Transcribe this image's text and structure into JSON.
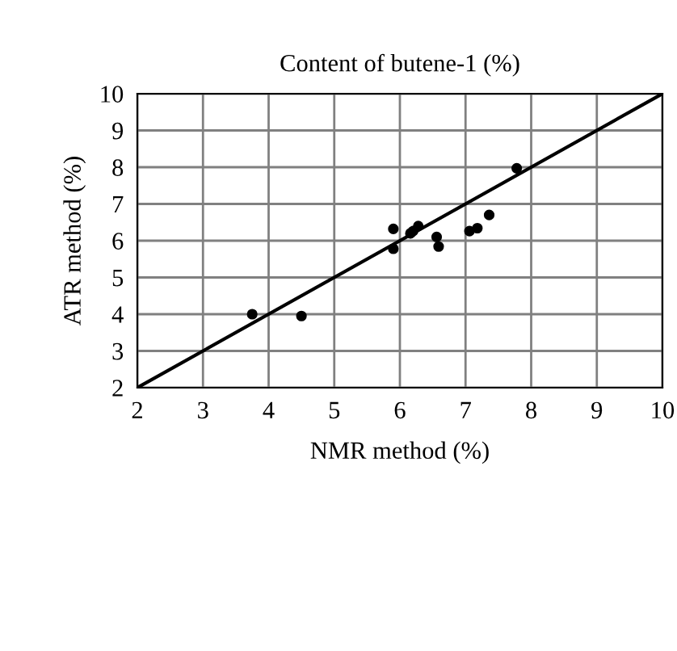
{
  "chart_data": {
    "type": "scatter",
    "title": "Content of butene-1 (%)",
    "xlabel": "NMR method (%)",
    "ylabel": "ATR method (%)",
    "xlim": [
      2,
      10
    ],
    "ylim": [
      2,
      10
    ],
    "xticks": [
      2,
      3,
      4,
      5,
      6,
      7,
      8,
      9,
      10
    ],
    "yticks": [
      2,
      3,
      4,
      5,
      6,
      7,
      8,
      9,
      10
    ],
    "grid": true,
    "marker": "circle",
    "series": [
      {
        "color": "#000000",
        "x": [
          3.75,
          4.5,
          5.9,
          5.9,
          6.16,
          6.2,
          6.28,
          6.56,
          6.59,
          7.06,
          7.18,
          7.36,
          7.78
        ],
        "values": [
          4.0,
          3.95,
          6.32,
          5.78,
          6.2,
          6.26,
          6.4,
          6.1,
          5.84,
          6.26,
          6.34,
          6.7,
          7.97
        ]
      },
      {
        "type": "line",
        "color": "#000000",
        "x": [
          2,
          10
        ],
        "values": [
          2,
          10
        ],
        "marker": "none",
        "line_style": "solid"
      }
    ]
  }
}
